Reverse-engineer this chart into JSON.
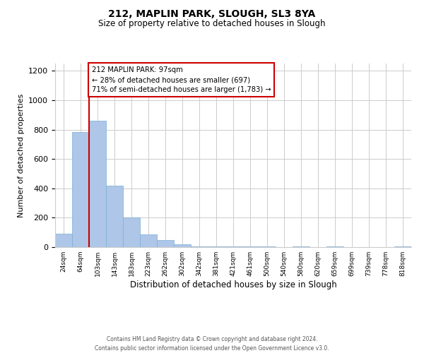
{
  "title": "212, MAPLIN PARK, SLOUGH, SL3 8YA",
  "subtitle": "Size of property relative to detached houses in Slough",
  "xlabel": "Distribution of detached houses by size in Slough",
  "ylabel": "Number of detached properties",
  "categories": [
    "24sqm",
    "64sqm",
    "103sqm",
    "143sqm",
    "183sqm",
    "223sqm",
    "262sqm",
    "302sqm",
    "342sqm",
    "381sqm",
    "421sqm",
    "461sqm",
    "500sqm",
    "540sqm",
    "580sqm",
    "620sqm",
    "659sqm",
    "699sqm",
    "739sqm",
    "778sqm",
    "818sqm"
  ],
  "values": [
    90,
    785,
    860,
    420,
    200,
    85,
    50,
    20,
    5,
    5,
    5,
    5,
    5,
    0,
    5,
    0,
    5,
    0,
    0,
    0,
    5
  ],
  "bar_color": "#aec6e8",
  "bar_edge_color": "#7bafd4",
  "vline_color": "#cc0000",
  "annotation_text": "212 MAPLIN PARK: 97sqm\n← 28% of detached houses are smaller (697)\n71% of semi-detached houses are larger (1,783) →",
  "annotation_box_color": "#ffffff",
  "annotation_box_edgecolor": "#cc0000",
  "footer_text": "Contains HM Land Registry data © Crown copyright and database right 2024.\nContains public sector information licensed under the Open Government Licence v3.0.",
  "ylim": [
    0,
    1250
  ],
  "background_color": "#ffffff",
  "grid_color": "#cccccc"
}
